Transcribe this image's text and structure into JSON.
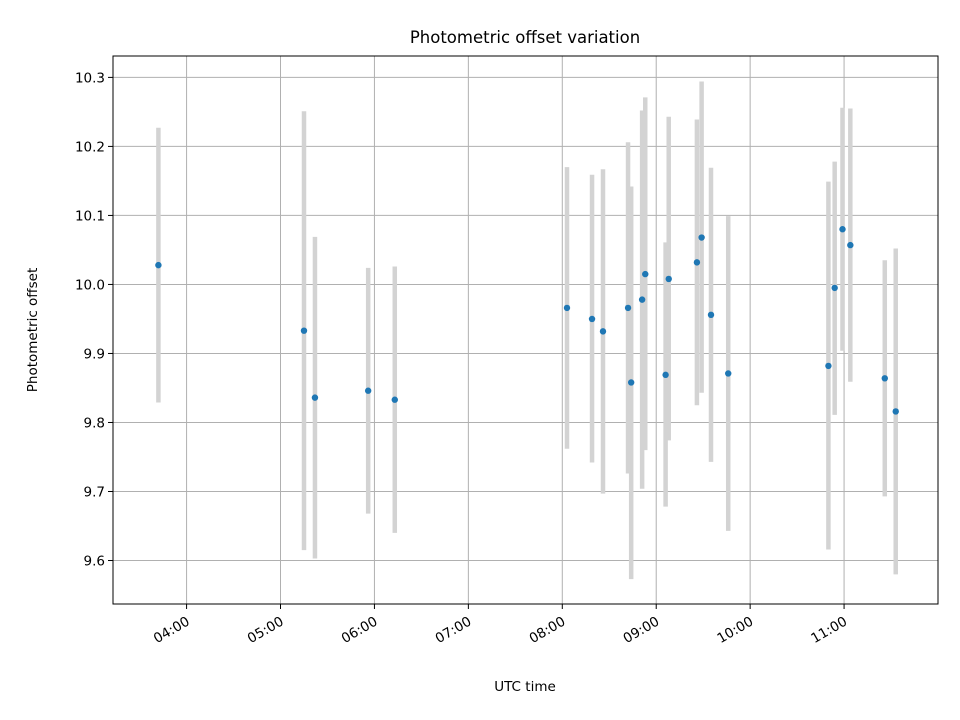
{
  "chart_data": {
    "type": "scatter",
    "title": "Photometric offset variation",
    "xlabel": "UTC time",
    "ylabel": "Photometric offset",
    "x_axis": {
      "range_minutes": [
        193,
        720
      ],
      "ticks": [
        {
          "label": "04:00",
          "minutes": 240
        },
        {
          "label": "05:00",
          "minutes": 300
        },
        {
          "label": "06:00",
          "minutes": 360
        },
        {
          "label": "07:00",
          "minutes": 420
        },
        {
          "label": "08:00",
          "minutes": 480
        },
        {
          "label": "09:00",
          "minutes": 540
        },
        {
          "label": "10:00",
          "minutes": 600
        },
        {
          "label": "11:00",
          "minutes": 660
        }
      ]
    },
    "y_axis": {
      "range": [
        9.537,
        10.331
      ],
      "ticks": [
        9.6,
        9.7,
        9.8,
        9.9,
        10.0,
        10.1,
        10.2,
        10.3
      ],
      "tick_labels": [
        "9.6",
        "9.7",
        "9.8",
        "9.9",
        "10.0",
        "10.1",
        "10.2",
        "10.3"
      ]
    },
    "grid": true,
    "colors": {
      "points": "#1f77b4",
      "error_bars": "#d3d3d3",
      "grid": "#b0b0b0"
    },
    "points": [
      {
        "time": "03:42",
        "y": 10.028,
        "low": 9.829,
        "high": 10.227
      },
      {
        "time": "05:15",
        "y": 9.933,
        "low": 9.615,
        "high": 10.251
      },
      {
        "time": "05:22",
        "y": 9.836,
        "low": 9.603,
        "high": 10.069
      },
      {
        "time": "05:56",
        "y": 9.846,
        "low": 9.668,
        "high": 10.024
      },
      {
        "time": "06:13",
        "y": 9.833,
        "low": 9.64,
        "high": 10.026
      },
      {
        "time": "08:03",
        "y": 9.966,
        "low": 9.762,
        "high": 10.17
      },
      {
        "time": "08:19",
        "y": 9.95,
        "low": 9.742,
        "high": 10.159
      },
      {
        "time": "08:26",
        "y": 9.932,
        "low": 9.697,
        "high": 10.167
      },
      {
        "time": "08:42",
        "y": 9.966,
        "low": 9.726,
        "high": 10.206
      },
      {
        "time": "08:44",
        "y": 9.858,
        "low": 9.573,
        "high": 10.142
      },
      {
        "time": "08:51",
        "y": 9.978,
        "low": 9.704,
        "high": 10.252
      },
      {
        "time": "08:53",
        "y": 10.015,
        "low": 9.76,
        "high": 10.271
      },
      {
        "time": "09:06",
        "y": 9.869,
        "low": 9.678,
        "high": 10.061
      },
      {
        "time": "09:08",
        "y": 10.008,
        "low": 9.774,
        "high": 10.243
      },
      {
        "time": "09:26",
        "y": 10.032,
        "low": 9.825,
        "high": 10.239
      },
      {
        "time": "09:29",
        "y": 10.068,
        "low": 9.843,
        "high": 10.294
      },
      {
        "time": "09:35",
        "y": 9.956,
        "low": 9.743,
        "high": 10.169
      },
      {
        "time": "09:46",
        "y": 9.871,
        "low": 9.643,
        "high": 10.099
      },
      {
        "time": "10:50",
        "y": 9.882,
        "low": 9.616,
        "high": 10.149
      },
      {
        "time": "10:54",
        "y": 9.995,
        "low": 9.811,
        "high": 10.178
      },
      {
        "time": "10:59",
        "y": 10.08,
        "low": 9.904,
        "high": 10.256
      },
      {
        "time": "11:04",
        "y": 10.057,
        "low": 9.859,
        "high": 10.255
      },
      {
        "time": "11:26",
        "y": 9.864,
        "low": 9.693,
        "high": 10.035
      },
      {
        "time": "11:33",
        "y": 9.816,
        "low": 9.58,
        "high": 10.052
      }
    ]
  }
}
